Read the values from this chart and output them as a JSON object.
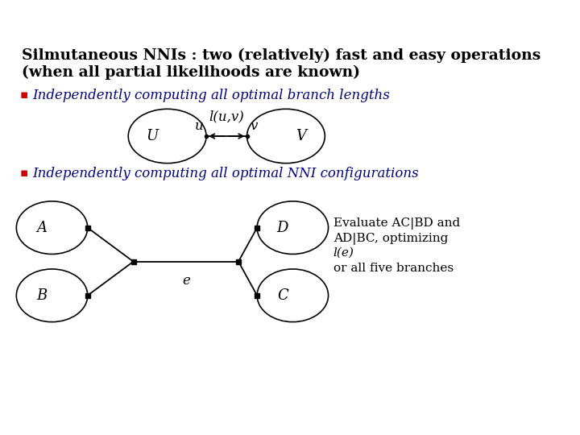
{
  "bg_color": "#ffffff",
  "title_line1": "Silmutaneous NNIs : two (relatively) fast and easy operations",
  "title_line2": "(when all partial likelihoods are known)",
  "title_fontsize": 13.5,
  "title_color": "#000000",
  "bullet_color": "#cc0000",
  "bullet1_text": "Independently computing all optimal branch lengths",
  "bullet2_text": "Independently computing all optimal NNI configurations",
  "bullet_fontsize": 12,
  "bullet_text_color": "#000080",
  "eval_line1": "Evaluate AC|BD and",
  "eval_line2": "AD|BC, optimizing",
  "eval_line3": "l(e)",
  "eval_line4": "or all five branches",
  "eval_fontsize": 11
}
